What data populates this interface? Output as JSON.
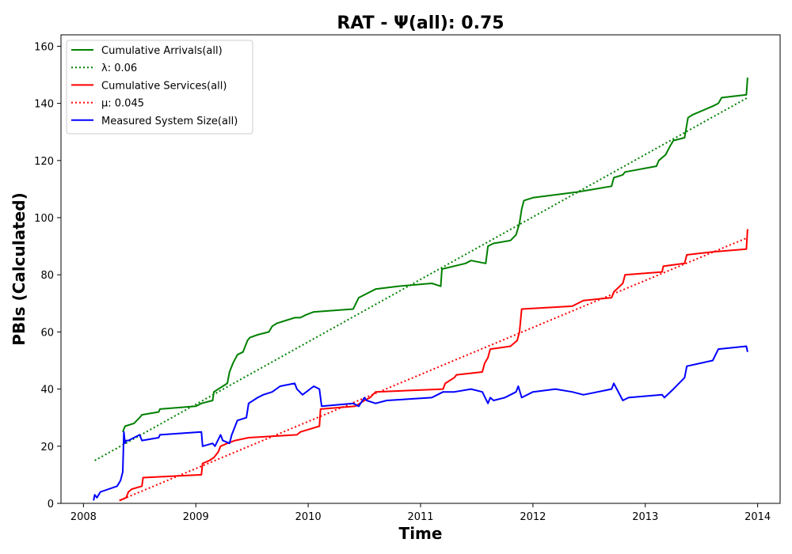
{
  "chart_data": {
    "type": "line",
    "title": "RAT -  Ψ(all): 0.75",
    "xlabel": "Time",
    "ylabel": "PBIs (Calculated)",
    "xlim": [
      2007.8,
      2014.2
    ],
    "ylim": [
      0,
      164
    ],
    "xticks": [
      2008,
      2009,
      2010,
      2011,
      2012,
      2013,
      2014
    ],
    "xtick_labels": [
      "2008",
      "2009",
      "2010",
      "2011",
      "2012",
      "2013",
      "2014"
    ],
    "yticks": [
      0,
      20,
      40,
      60,
      80,
      100,
      120,
      140,
      160
    ],
    "ytick_labels": [
      "0",
      "20",
      "40",
      "60",
      "80",
      "100",
      "120",
      "140",
      "160"
    ],
    "grid": false,
    "legend_position": "top-left",
    "series": [
      {
        "name": "Cumulative Arrivals(all)",
        "color": "#008000",
        "style": "solid",
        "x": [
          2008.35,
          2008.37,
          2008.45,
          2008.5,
          2008.52,
          2008.67,
          2008.68,
          2009.0,
          2009.05,
          2009.15,
          2009.16,
          2009.28,
          2009.3,
          2009.33,
          2009.37,
          2009.42,
          2009.46,
          2009.48,
          2009.55,
          2009.65,
          2009.68,
          2009.72,
          2009.8,
          2009.88,
          2009.93,
          2009.98,
          2010.05,
          2010.4,
          2010.45,
          2010.55,
          2010.6,
          2010.8,
          2011.1,
          2011.18,
          2011.19,
          2011.4,
          2011.45,
          2011.58,
          2011.6,
          2011.65,
          2011.8,
          2011.85,
          2011.88,
          2011.9,
          2011.92,
          2012.0,
          2012.4,
          2012.7,
          2012.72,
          2012.8,
          2012.82,
          2013.1,
          2013.12,
          2013.18,
          2013.22,
          2013.25,
          2013.35,
          2013.38,
          2013.42,
          2013.6,
          2013.65,
          2013.68,
          2013.9,
          2013.91
        ],
        "y": [
          25,
          27,
          28,
          30,
          31,
          32,
          33,
          34,
          35,
          36,
          39,
          42,
          46,
          49,
          52,
          53,
          57,
          58,
          59,
          60,
          62,
          63,
          64,
          65,
          65,
          66,
          67,
          68,
          72,
          74,
          75,
          76,
          77,
          76,
          82,
          84,
          85,
          84,
          90,
          91,
          92,
          94,
          98,
          103,
          106,
          107,
          109,
          111,
          114,
          115,
          116,
          118,
          120,
          122,
          125,
          127,
          128,
          135,
          136,
          139,
          140,
          142,
          143,
          149
        ]
      },
      {
        "name": "λ: 0.06",
        "color": "#008000",
        "style": "dotted",
        "x": [
          2008.1,
          2013.91
        ],
        "y": [
          15,
          142
        ]
      },
      {
        "name": "Cumulative Services(all)",
        "color": "#ff0000",
        "style": "solid",
        "x": [
          2008.32,
          2008.38,
          2008.4,
          2008.43,
          2008.52,
          2008.53,
          2009.05,
          2009.06,
          2009.12,
          2009.16,
          2009.2,
          2009.22,
          2009.28,
          2009.35,
          2009.47,
          2009.9,
          2009.93,
          2010.1,
          2010.11,
          2010.42,
          2010.5,
          2010.55,
          2010.6,
          2011.2,
          2011.22,
          2011.3,
          2011.32,
          2011.55,
          2011.57,
          2011.6,
          2011.62,
          2011.8,
          2011.86,
          2011.88,
          2011.9,
          2012.35,
          2012.45,
          2012.7,
          2012.72,
          2012.8,
          2012.82,
          2013.15,
          2013.16,
          2013.35,
          2013.37,
          2013.6,
          2013.9,
          2013.91
        ],
        "y": [
          1,
          2,
          4,
          5,
          6,
          9,
          10,
          14,
          15,
          16,
          18,
          20,
          21,
          22,
          23,
          24,
          25,
          27,
          33,
          34,
          36,
          37,
          39,
          40,
          42,
          44,
          45,
          46,
          49,
          51,
          54,
          55,
          57,
          60,
          68,
          69,
          71,
          72,
          74,
          77,
          80,
          81,
          83,
          84,
          87,
          88,
          89,
          96
        ]
      },
      {
        "name": "μ: 0.045",
        "color": "#ff0000",
        "style": "dotted",
        "x": [
          2008.32,
          2013.91
        ],
        "y": [
          1,
          93
        ]
      },
      {
        "name": "Measured System Size(all)",
        "color": "#0000ff",
        "style": "solid",
        "x": [
          2008.09,
          2008.1,
          2008.12,
          2008.15,
          2008.3,
          2008.33,
          2008.35,
          2008.36,
          2008.37,
          2008.38,
          2008.4,
          2008.5,
          2008.52,
          2008.67,
          2008.68,
          2009.05,
          2009.06,
          2009.15,
          2009.17,
          2009.22,
          2009.24,
          2009.3,
          2009.32,
          2009.35,
          2009.37,
          2009.45,
          2009.47,
          2009.55,
          2009.6,
          2009.68,
          2009.75,
          2009.88,
          2009.9,
          2009.95,
          2010.05,
          2010.1,
          2010.12,
          2010.4,
          2010.45,
          2010.5,
          2010.52,
          2010.6,
          2010.7,
          2011.1,
          2011.15,
          2011.2,
          2011.3,
          2011.45,
          2011.55,
          2011.6,
          2011.62,
          2011.65,
          2011.75,
          2011.8,
          2011.85,
          2011.87,
          2011.9,
          2012.0,
          2012.2,
          2012.35,
          2012.45,
          2012.7,
          2012.72,
          2012.8,
          2012.85,
          2013.15,
          2013.17,
          2013.25,
          2013.35,
          2013.37,
          2013.6,
          2013.65,
          2013.9,
          2013.91
        ],
        "y": [
          1,
          3,
          2,
          4,
          6,
          8,
          11,
          25,
          21,
          22,
          22,
          24,
          22,
          23,
          24,
          25,
          20,
          21,
          20,
          24,
          22,
          21,
          24,
          27,
          29,
          30,
          35,
          37,
          38,
          39,
          41,
          42,
          40,
          38,
          41,
          40,
          34,
          35,
          34,
          37,
          36,
          35,
          36,
          37,
          38,
          39,
          39,
          40,
          39,
          35,
          37,
          36,
          37,
          38,
          39,
          41,
          37,
          39,
          40,
          39,
          38,
          40,
          42,
          36,
          37,
          38,
          37,
          40,
          44,
          48,
          50,
          54,
          55,
          53
        ]
      }
    ]
  }
}
